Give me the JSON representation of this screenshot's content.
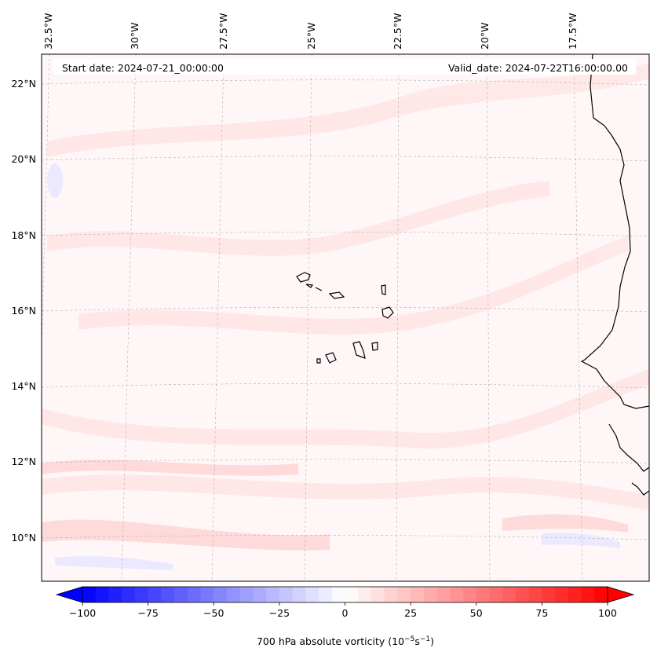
{
  "header": {
    "start_date": "Start date: 2024-07-21_00:00:00",
    "valid_date": "Valid_date: 2024-07-22T16:00:00.00"
  },
  "map": {
    "lon_labels": [
      "32.5°W",
      "30°W",
      "27.5°W",
      "25°W",
      "22.5°W",
      "20°W",
      "17.5°W"
    ],
    "lat_labels": [
      "22°N",
      "20°N",
      "18°N",
      "16°N",
      "14°N",
      "12°N",
      "10°N"
    ],
    "gridlines": true,
    "field": "700 hPa absolute vorticity"
  },
  "colorbar": {
    "ticks": [
      "−100",
      "−75",
      "−50",
      "−25",
      "0",
      "25",
      "50",
      "75",
      "100"
    ],
    "label": "700 hPa absolute vorticity (10",
    "label_exp1": "−5",
    "label_mid": "s",
    "label_exp2": "−1",
    "label_end": ")",
    "range": [
      -100,
      100
    ],
    "extend": "both",
    "cmap": "bwr",
    "colors": {
      "low": "#0000ff",
      "mid": "#ffffff",
      "high": "#ff0000"
    }
  }
}
